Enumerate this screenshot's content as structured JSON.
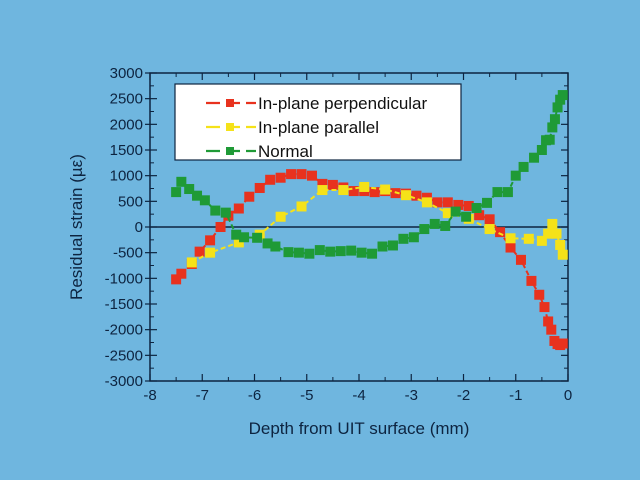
{
  "chart_data": {
    "type": "line",
    "title": "",
    "xlabel": "Depth from UIT surface (mm)",
    "ylabel": "Residual strain (µε)",
    "xlim": [
      -8,
      0
    ],
    "ylim": [
      -3000,
      3000
    ],
    "xticks": [
      -8,
      -7,
      -6,
      -5,
      -4,
      -3,
      -2,
      -1,
      0
    ],
    "xtick_labels": [
      "-8",
      "-7",
      "-6",
      "-5",
      "-4",
      "-3",
      "-2",
      "-1",
      "0"
    ],
    "yticks": [
      3000,
      2500,
      2000,
      1500,
      1000,
      500,
      0,
      -500,
      -1000,
      -1500,
      -2000,
      -2500,
      -3000
    ],
    "ytick_labels": [
      "3000",
      "2500",
      "2000",
      "1500",
      "1000",
      "500",
      "0",
      "-500",
      "-1000",
      "-1500",
      "-2000",
      "-2500",
      "-3000"
    ],
    "grid": false,
    "zero_line": true,
    "legend_position": "top-left",
    "background_color": "#6fb6df",
    "series": [
      {
        "name": "In-plane perpendicular",
        "color": "#e8321e",
        "x": [
          -7.5,
          -7.4,
          -7.2,
          -7.05,
          -6.85,
          -6.65,
          -6.5,
          -6.3,
          -6.1,
          -5.9,
          -5.7,
          -5.5,
          -5.3,
          -5.1,
          -4.9,
          -4.7,
          -4.5,
          -4.3,
          -4.1,
          -3.9,
          -3.7,
          -3.5,
          -3.3,
          -3.1,
          -2.9,
          -2.7,
          -2.5,
          -2.3,
          -2.1,
          -1.9,
          -1.7,
          -1.5,
          -1.3,
          -1.1,
          -0.9,
          -0.7,
          -0.55,
          -0.45,
          -0.38,
          -0.32,
          -0.26,
          -0.2,
          -0.15,
          -0.1
        ],
        "y": [
          -1020,
          -910,
          -720,
          -480,
          -260,
          0,
          220,
          360,
          590,
          760,
          920,
          960,
          1030,
          1030,
          1000,
          840,
          820,
          770,
          700,
          700,
          680,
          700,
          660,
          650,
          610,
          570,
          480,
          480,
          430,
          410,
          230,
          150,
          -100,
          -400,
          -640,
          -1050,
          -1320,
          -1560,
          -1840,
          -2000,
          -2220,
          -2280,
          -2300,
          -2270
        ]
      },
      {
        "name": "In-plane parallel",
        "color": "#f5e219",
        "x": [
          -7.2,
          -6.85,
          -6.3,
          -5.9,
          -5.5,
          -5.1,
          -4.7,
          -4.3,
          -3.9,
          -3.5,
          -3.1,
          -2.7,
          -2.3,
          -1.9,
          -1.5,
          -1.1,
          -0.75,
          -0.5,
          -0.38,
          -0.3,
          -0.22,
          -0.15,
          -0.1
        ],
        "y": [
          -690,
          -500,
          -300,
          -150,
          200,
          400,
          720,
          720,
          780,
          730,
          620,
          480,
          270,
          160,
          -40,
          -220,
          -230,
          -270,
          -130,
          60,
          -130,
          -350,
          -540
        ]
      },
      {
        "name": "Normal",
        "color": "#1f9a36",
        "x": [
          -7.5,
          -7.4,
          -7.25,
          -7.1,
          -6.95,
          -6.75,
          -6.55,
          -6.35,
          -6.2,
          -5.95,
          -5.75,
          -5.6,
          -5.35,
          -5.15,
          -4.95,
          -4.75,
          -4.55,
          -4.35,
          -4.15,
          -3.95,
          -3.75,
          -3.55,
          -3.35,
          -3.15,
          -2.95,
          -2.75,
          -2.55,
          -2.35,
          -2.15,
          -1.95,
          -1.75,
          -1.55,
          -1.35,
          -1.15,
          -1.0,
          -0.85,
          -0.65,
          -0.5,
          -0.42,
          -0.35,
          -0.3,
          -0.25,
          -0.2,
          -0.15,
          -0.1
        ],
        "y": [
          680,
          880,
          740,
          610,
          520,
          320,
          280,
          -150,
          -200,
          -210,
          -320,
          -380,
          -490,
          -500,
          -520,
          -450,
          -480,
          -470,
          -460,
          -500,
          -520,
          -380,
          -360,
          -230,
          -200,
          -40,
          60,
          20,
          300,
          200,
          370,
          470,
          680,
          680,
          1000,
          1170,
          1350,
          1500,
          1690,
          1700,
          1940,
          2100,
          2330,
          2480,
          2570
        ]
      }
    ]
  }
}
